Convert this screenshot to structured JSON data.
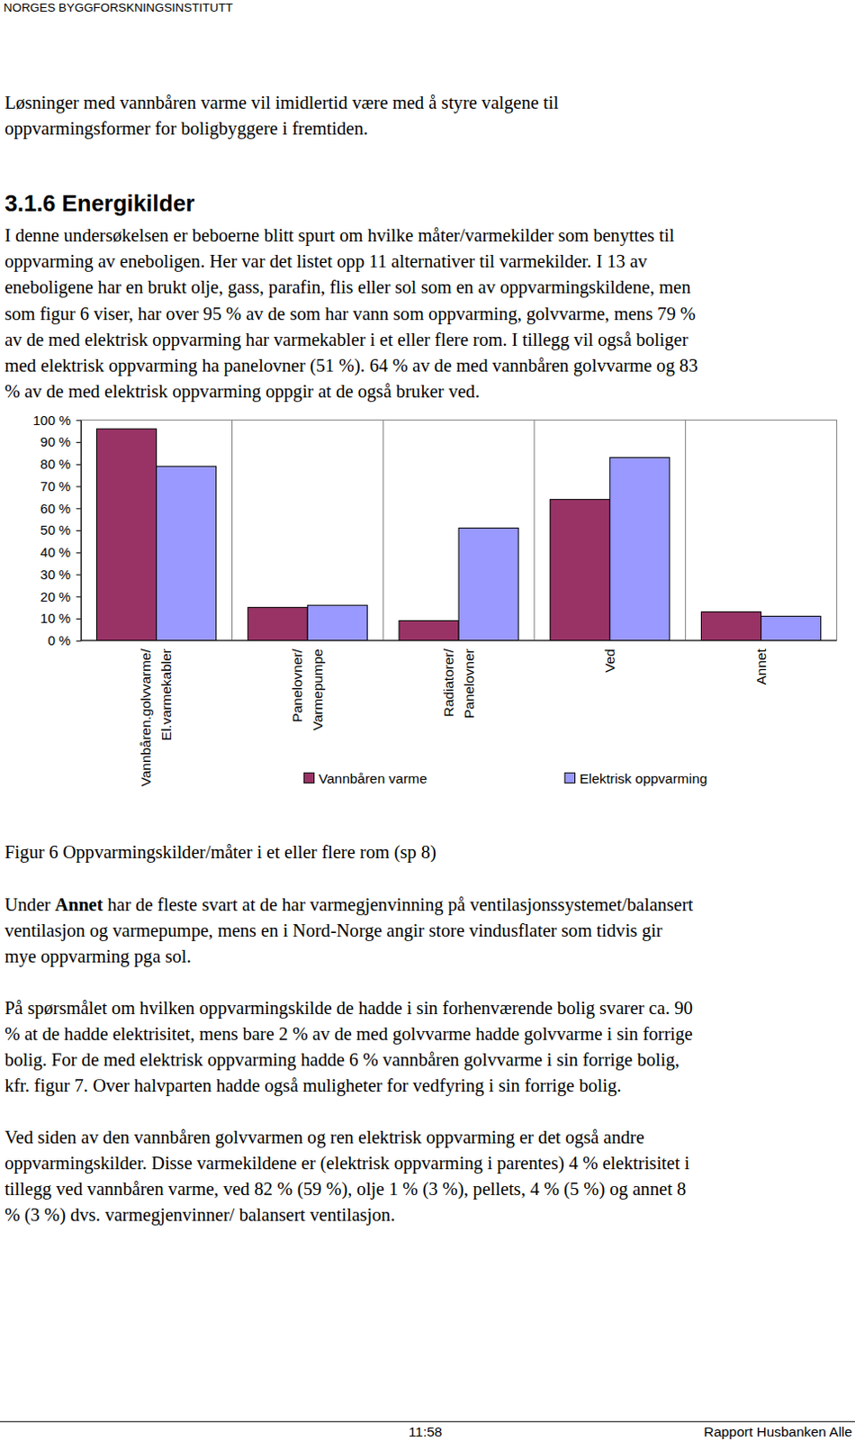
{
  "header": "NORGES BYGGFORSKNINGSINSTITUTT",
  "intro": [
    "Løsninger med vannbåren varme vil imidlertid være med å styre valgene til",
    "oppvarmingsformer for boligbyggere i fremtiden."
  ],
  "heading": "3.1.6  Energikilder",
  "section_text": [
    "I denne undersøkelsen er beboerne blitt spurt om hvilke måter/varmekilder som benyttes til",
    "oppvarming av eneboligen. Her var det listet opp 11 alternativer til varmekilder. I 13 av",
    "eneboligene har en brukt olje, gass, parafin, flis eller sol som en av oppvarmingskildene, men",
    "som figur 6 viser, har over 95 % av de som har vann som oppvarming, golvvarme, mens 79 %",
    "av de med elektrisk oppvarming har varmekabler i et eller flere rom. I tillegg vil også boliger",
    "med elektrisk oppvarming ha panelovner (51 %). 64 % av de med vannbåren golvvarme og 83",
    "% av de med elektrisk oppvarming oppgir at de også bruker ved."
  ],
  "chart_data": {
    "type": "bar",
    "categories": [
      [
        "Vannbåren.golvvarme/",
        "El.varmekabler"
      ],
      [
        "Panelovner/",
        "Varmepumpe"
      ],
      [
        "Radiatorer/",
        "Panelovner"
      ],
      [
        "Ved"
      ],
      [
        "Annet"
      ]
    ],
    "series": [
      {
        "name": "Vannbåren varme",
        "color": "#993366",
        "values": [
          96,
          15,
          9,
          64,
          13
        ]
      },
      {
        "name": "Elektrisk oppvarming",
        "color": "#9999ff",
        "values": [
          79,
          16,
          51,
          83,
          11
        ]
      }
    ],
    "ylim": [
      0,
      100
    ],
    "yticks": [
      {
        "value": 0,
        "label": "0 %"
      },
      {
        "value": 10,
        "label": "10 %"
      },
      {
        "value": 20,
        "label": "20 %"
      },
      {
        "value": 30,
        "label": "30 %"
      },
      {
        "value": 40,
        "label": "40 %"
      },
      {
        "value": 50,
        "label": "50 %"
      },
      {
        "value": 60,
        "label": "60 %"
      },
      {
        "value": 70,
        "label": "70 %"
      },
      {
        "value": 80,
        "label": "80 %"
      },
      {
        "value": 90,
        "label": "90 %"
      },
      {
        "value": 100,
        "label": "100 %"
      }
    ],
    "grid": "x",
    "legend": "bottom"
  },
  "caption": "Figur 6 Oppvarmingskilder/måter i et eller flere rom (sp 8)",
  "paragraphs": [
    [
      [
        {
          "text": "Under "
        },
        {
          "text": "Annet",
          "bold": true
        },
        {
          "text": " har de fleste svart at de har varmegjenvinning på ventilasjonssystemet/balansert"
        }
      ],
      "ventilasjon og varmepumpe, mens en i Nord-Norge angir store vindusflater som tidvis gir",
      "mye oppvarming pga sol."
    ],
    [
      "På spørsmålet om hvilken oppvarmingskilde de hadde i sin forhenværende bolig svarer ca. 90",
      "% at de hadde elektrisitet, mens bare 2 % av de med golvvarme hadde golvvarme i sin forrige",
      "bolig. For de med elektrisk oppvarming hadde 6 % vannbåren golvvarme i sin forrige bolig,",
      "kfr. figur 7. Over halvparten hadde også muligheter for vedfyring i sin forrige bolig."
    ],
    [
      "Ved siden av den vannbåren golvvarmen og ren elektrisk oppvarming er det også andre",
      "oppvarmingskilder. Disse varmekildene er (elektrisk oppvarming i parentes) 4 % elektrisitet  i",
      "tillegg ved vannbåren varme, ved 82 % (59 %), olje 1 % (3 %), pellets, 4 % (5 %) og annet 8",
      "% (3 %) dvs. varmegjenvinner/ balansert ventilasjon."
    ]
  ],
  "footer": {
    "time": "11:58",
    "title": "Rapport Husbanken Alle"
  }
}
